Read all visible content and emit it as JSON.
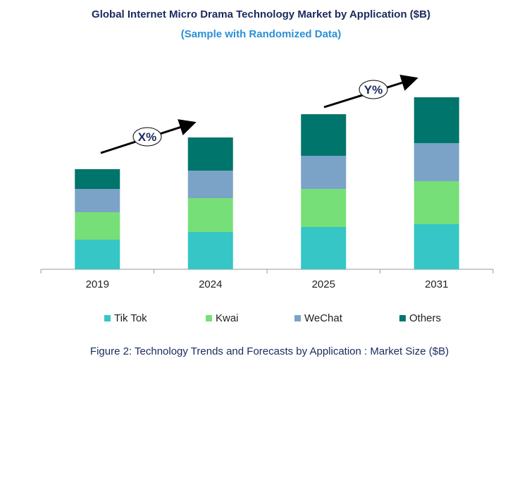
{
  "chart_data": {
    "type": "bar",
    "stacked": true,
    "title": "Global Internet Micro Drama Technology Market by Application ($B)",
    "subtitle": "(Sample with Randomized Data)",
    "categories": [
      "2019",
      "2024",
      "2025",
      "2031"
    ],
    "series": [
      {
        "name": "Tik Tok",
        "color": "#36C6C6",
        "values": [
          42,
          53,
          60,
          64
        ]
      },
      {
        "name": "Kwai",
        "color": "#77DF77",
        "values": [
          39,
          48,
          54,
          61
        ]
      },
      {
        "name": "WeChat",
        "color": "#7BA3C8",
        "values": [
          33,
          39,
          47,
          54
        ]
      },
      {
        "name": "Others",
        "color": "#00756B",
        "values": [
          28,
          47,
          59,
          65
        ]
      }
    ],
    "annotations": [
      "X%",
      "Y%"
    ],
    "y_axis_shown": false,
    "grid": false,
    "legend_position": "bottom",
    "caption": "Figure 2: Technology  Trends  and Forecasts by Application : Market Size ($B)"
  }
}
